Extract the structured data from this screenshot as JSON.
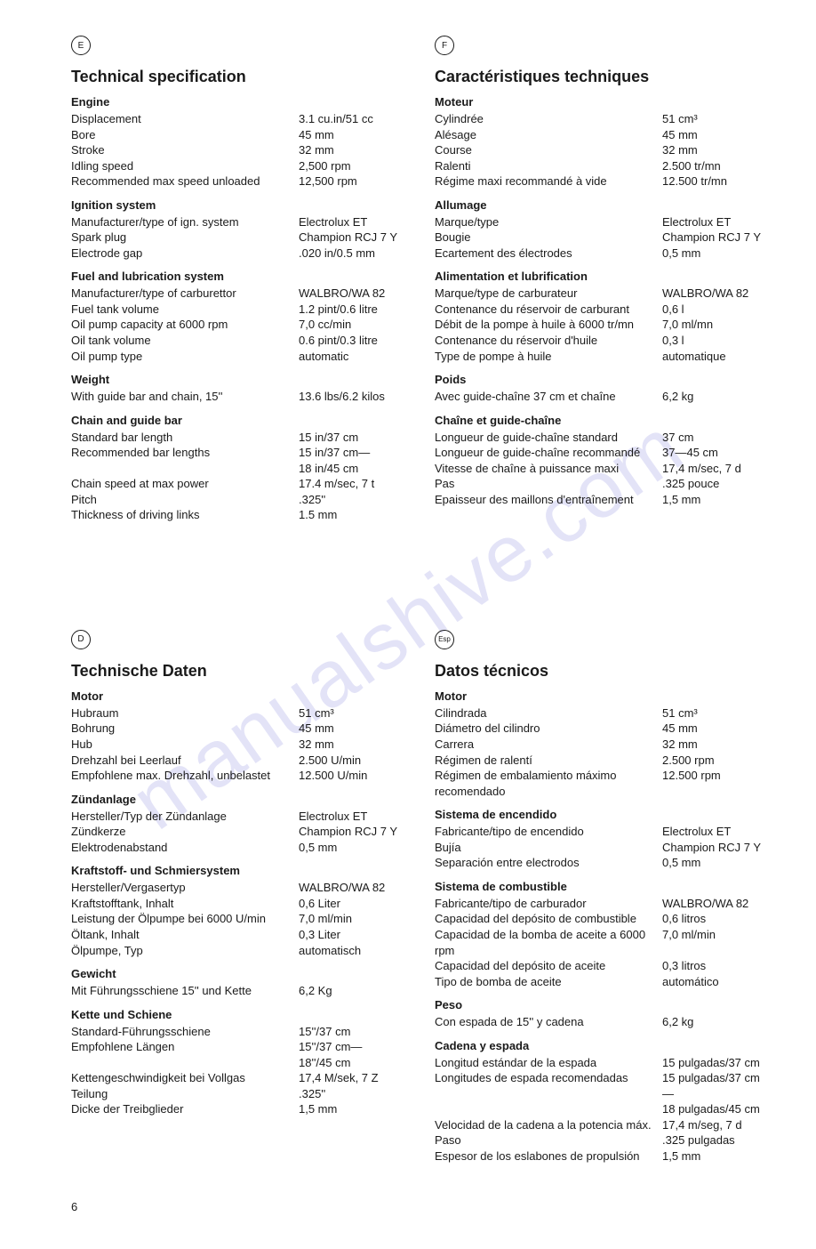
{
  "watermark": "manualshive.com",
  "page_number": "6",
  "columns": [
    {
      "badge": "E",
      "title": "Technical specification",
      "sections": [
        {
          "heading": "Engine",
          "rows": [
            [
              "Displacement",
              "3.1 cu.in/51 cc"
            ],
            [
              "Bore",
              "45 mm"
            ],
            [
              "Stroke",
              "32 mm"
            ],
            [
              "Idling speed",
              "2,500 rpm"
            ],
            [
              "Recommended max speed unloaded",
              "12,500 rpm"
            ]
          ]
        },
        {
          "heading": "Ignition system",
          "rows": [
            [
              "Manufacturer/type of ign. system",
              "Electrolux ET"
            ],
            [
              "Spark plug",
              "Champion RCJ 7 Y"
            ],
            [
              "Electrode gap",
              ".020 in/0.5 mm"
            ]
          ]
        },
        {
          "heading": "Fuel and lubrication system",
          "rows": [
            [
              "Manufacturer/type of carburettor",
              "WALBRO/WA 82"
            ],
            [
              "Fuel tank volume",
              "1.2 pint/0.6 litre"
            ],
            [
              "Oil pump capacity at 6000 rpm",
              "7,0 cc/min"
            ],
            [
              "Oil tank volume",
              "0.6 pint/0.3 litre"
            ],
            [
              "Oil pump type",
              "automatic"
            ]
          ]
        },
        {
          "heading": "Weight",
          "rows": [
            [
              "With guide bar and chain, 15''",
              "13.6 lbs/6.2 kilos"
            ]
          ]
        },
        {
          "heading": "Chain and guide bar",
          "rows": [
            [
              "Standard bar length",
              "15 in/37 cm"
            ],
            [
              "Recommended bar lengths",
              "15 in/37 cm—"
            ],
            [
              "",
              "18 in/45 cm"
            ],
            [
              "Chain speed at max power",
              "17.4 m/sec, 7 t"
            ],
            [
              "Pitch",
              ".325''"
            ],
            [
              "Thickness of driving links",
              "1.5 mm"
            ]
          ]
        }
      ]
    },
    {
      "badge": "F",
      "title": "Caractéristiques techniques",
      "sections": [
        {
          "heading": "Moteur",
          "rows": [
            [
              "Cylindrée",
              "51 cm³"
            ],
            [
              "Alésage",
              "45 mm"
            ],
            [
              "Course",
              "32 mm"
            ],
            [
              "Ralenti",
              "2.500 tr/mn"
            ],
            [
              "Régime maxi recommandé à vide",
              "12.500 tr/mn"
            ]
          ]
        },
        {
          "heading": "Allumage",
          "rows": [
            [
              "Marque/type",
              "Electrolux ET"
            ],
            [
              "Bougie",
              "Champion RCJ 7 Y"
            ],
            [
              "Ecartement des électrodes",
              "0,5 mm"
            ]
          ]
        },
        {
          "heading": "Alimentation et lubrification",
          "rows": [
            [
              "Marque/type de carburateur",
              "WALBRO/WA 82"
            ],
            [
              "Contenance du réservoir de carburant",
              "0,6 l"
            ],
            [
              "Débit de la pompe à huile à 6000 tr/mn",
              "7,0 ml/mn"
            ],
            [
              "Contenance du réservoir d'huile",
              "0,3 l"
            ],
            [
              "Type de pompe à huile",
              "automatique"
            ]
          ]
        },
        {
          "heading": "Poids",
          "rows": [
            [
              "Avec guide-chaîne 37 cm et chaîne",
              "6,2 kg"
            ]
          ]
        },
        {
          "heading": "Chaîne et guide-chaîne",
          "rows": [
            [
              "Longueur de guide-chaîne standard",
              "37 cm"
            ],
            [
              "Longueur de guide-chaîne recommandé",
              "37—45 cm"
            ],
            [
              "Vitesse de chaîne à puissance maxi",
              "17,4 m/sec, 7 d"
            ],
            [
              "Pas",
              ".325 pouce"
            ],
            [
              "Epaisseur des maillons d'entraînement",
              "1,5 mm"
            ]
          ]
        }
      ]
    },
    {
      "badge": "D",
      "title": "Technische Daten",
      "sections": [
        {
          "heading": "Motor",
          "rows": [
            [
              "Hubraum",
              "51 cm³"
            ],
            [
              "Bohrung",
              "45 mm"
            ],
            [
              "Hub",
              "32 mm"
            ],
            [
              "Drehzahl bei Leerlauf",
              "2.500 U/min"
            ],
            [
              "Empfohlene max. Drehzahl, unbelastet",
              "12.500 U/min"
            ]
          ]
        },
        {
          "heading": "Zündanlage",
          "rows": [
            [
              "Hersteller/Typ der Zündanlage",
              "Electrolux ET"
            ],
            [
              "Zündkerze",
              "Champion RCJ 7 Y"
            ],
            [
              "Elektrodenabstand",
              "0,5 mm"
            ]
          ]
        },
        {
          "heading": "Kraftstoff- und Schmiersystem",
          "rows": [
            [
              "Hersteller/Vergasertyp",
              "WALBRO/WA 82"
            ],
            [
              "Kraftstofftank, Inhalt",
              "0,6 Liter"
            ],
            [
              "Leistung der Ölpumpe bei 6000 U/min",
              "7,0 ml/min"
            ],
            [
              "Öltank, Inhalt",
              "0,3 Liter"
            ],
            [
              "Ölpumpe, Typ",
              "automatisch"
            ]
          ]
        },
        {
          "heading": "Gewicht",
          "rows": [
            [
              "Mit Führungsschiene 15'' und Kette",
              "6,2 Kg"
            ]
          ]
        },
        {
          "heading": "Kette und Schiene",
          "rows": [
            [
              "Standard-Führungsschiene",
              "15''/37 cm"
            ],
            [
              "Empfohlene Längen",
              "15''/37 cm—"
            ],
            [
              "",
              "18''/45 cm"
            ],
            [
              "Kettengeschwindigkeit bei Vollgas",
              "17,4 M/sek, 7 Z"
            ],
            [
              "Teilung",
              ".325''"
            ],
            [
              "Dicke der Treibglieder",
              "1,5 mm"
            ]
          ]
        }
      ]
    },
    {
      "badge": "Esp",
      "title": "Datos técnicos",
      "sections": [
        {
          "heading": "Motor",
          "rows": [
            [
              "Cilindrada",
              "51 cm³"
            ],
            [
              "Diámetro del cilindro",
              "45 mm"
            ],
            [
              "Carrera",
              "32 mm"
            ],
            [
              "Régimen de ralentí",
              "2.500 rpm"
            ],
            [
              "Régimen de embalamiento máximo recomendado",
              "12.500 rpm"
            ]
          ]
        },
        {
          "heading": "Sistema de encendido",
          "rows": [
            [
              "Fabricante/tipo de encendido",
              "Electrolux ET"
            ],
            [
              "Bujía",
              "Champion RCJ 7 Y"
            ],
            [
              "Separación entre electrodos",
              "0,5 mm"
            ]
          ]
        },
        {
          "heading": "Sistema de combustible",
          "rows": [
            [
              "Fabricante/tipo de carburador",
              "WALBRO/WA 82"
            ],
            [
              "Capacidad del depósito de combustible",
              "0,6 litros"
            ],
            [
              "Capacidad de la bomba de aceite a 6000 rpm",
              "7,0 ml/min"
            ],
            [
              "Capacidad del depósito de aceite",
              "0,3 litros"
            ],
            [
              "Tipo de bomba de aceite",
              "automático"
            ]
          ]
        },
        {
          "heading": "Peso",
          "rows": [
            [
              "Con espada de 15'' y cadena",
              "6,2 kg"
            ]
          ]
        },
        {
          "heading": "Cadena y espada",
          "rows": [
            [
              "Longitud estándar de la espada",
              "15 pulgadas/37 cm"
            ],
            [
              "Longitudes de espada recomendadas",
              "15 pulgadas/37 cm—"
            ],
            [
              "",
              "18 pulgadas/45 cm"
            ],
            [
              "Velocidad de la cadena a la potencia máx.",
              "17,4 m/seg, 7 d"
            ],
            [
              "Paso",
              ".325 pulgadas"
            ],
            [
              "Espesor de los eslabones de propulsión",
              "1,5 mm"
            ]
          ]
        }
      ]
    }
  ]
}
